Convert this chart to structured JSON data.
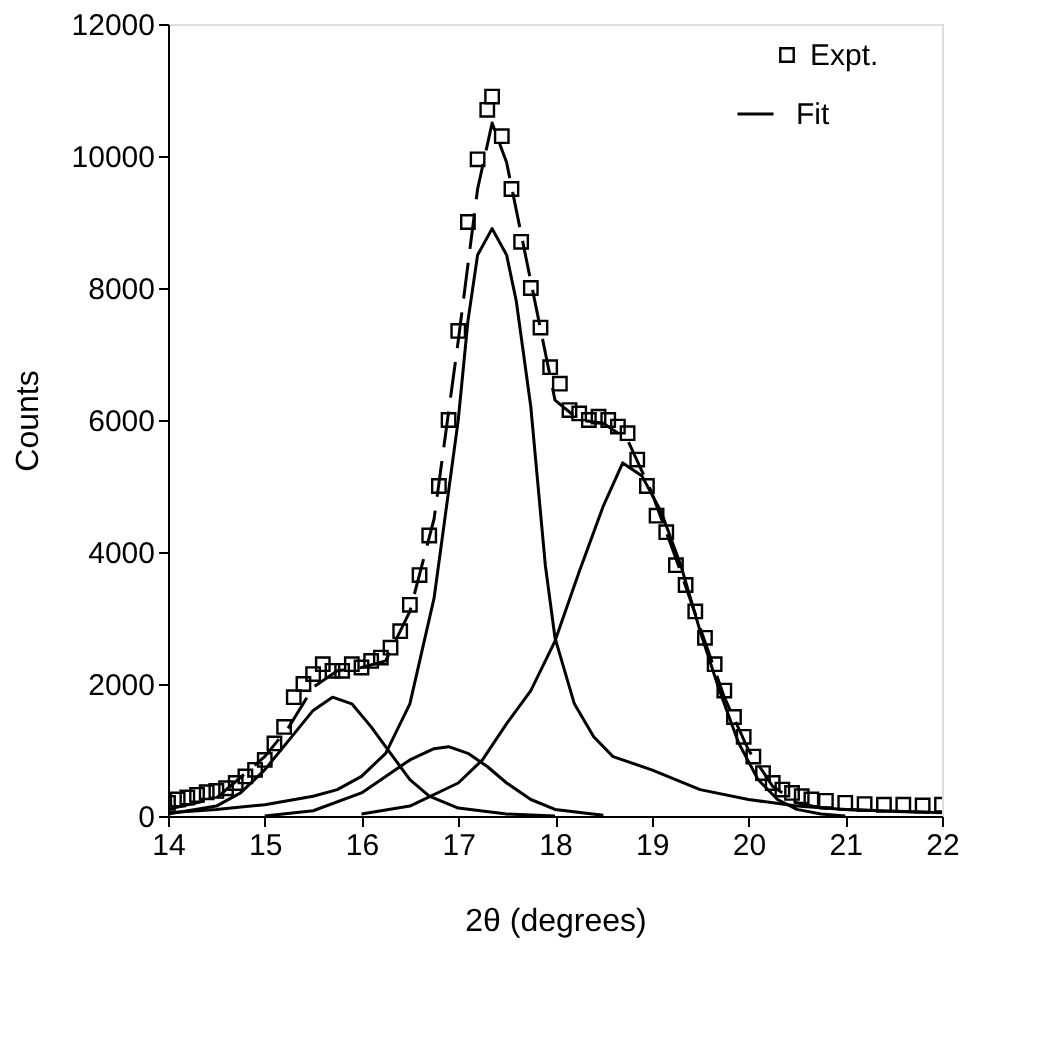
{
  "chart_data": {
    "type": "line",
    "xlabel": "2θ (degrees)",
    "ylabel": "Counts",
    "xlim": [
      14,
      22
    ],
    "xticks": [
      14,
      15,
      16,
      17,
      18,
      19,
      20,
      21,
      22
    ],
    "ylim": [
      0,
      12000
    ],
    "yticks": [
      0,
      2000,
      4000,
      6000,
      8000,
      10000,
      12000
    ],
    "grid": false,
    "legend": "top right",
    "series": [
      {
        "name": "Expt.",
        "type": "scatter",
        "marker": "square",
        "color": "#000000",
        "x": [
          14.0,
          14.1,
          14.2,
          14.3,
          14.4,
          14.5,
          14.6,
          14.7,
          14.8,
          14.9,
          15.0,
          15.1,
          15.2,
          15.3,
          15.4,
          15.5,
          15.6,
          15.7,
          15.8,
          15.9,
          16.0,
          16.1,
          16.2,
          16.3,
          16.4,
          16.5,
          16.6,
          16.7,
          16.8,
          16.9,
          17.0,
          17.1,
          17.2,
          17.3,
          17.35,
          17.45,
          17.55,
          17.65,
          17.75,
          17.85,
          17.95,
          18.05,
          18.15,
          18.25,
          18.35,
          18.45,
          18.55,
          18.65,
          18.75,
          18.85,
          18.95,
          19.05,
          19.15,
          19.25,
          19.35,
          19.45,
          19.55,
          19.65,
          19.75,
          19.85,
          19.95,
          20.05,
          20.15,
          20.25,
          20.35,
          20.45,
          20.55,
          20.65,
          20.8,
          21.0,
          21.2,
          21.4,
          21.6,
          21.8,
          22.0
        ],
        "values": [
          200,
          250,
          280,
          320,
          360,
          380,
          420,
          500,
          600,
          700,
          850,
          1100,
          1350,
          1800,
          2000,
          2150,
          2300,
          2200,
          2200,
          2300,
          2250,
          2350,
          2400,
          2550,
          2800,
          3200,
          3650,
          4250,
          5000,
          6000,
          7350,
          9000,
          9950,
          10700,
          10900,
          10300,
          9500,
          8700,
          8000,
          7400,
          6800,
          6550,
          6150,
          6100,
          6000,
          6050,
          6000,
          5900,
          5800,
          5400,
          5000,
          4550,
          4300,
          3800,
          3500,
          3100,
          2700,
          2300,
          1900,
          1500,
          1200,
          900,
          650,
          500,
          400,
          350,
          300,
          250,
          230,
          200,
          180,
          170,
          170,
          160,
          170
        ]
      },
      {
        "name": "Fit",
        "line_style": "dashed",
        "color": "#000000",
        "x": [
          14.0,
          14.5,
          15.0,
          15.25,
          15.5,
          15.75,
          16.0,
          16.25,
          16.5,
          16.75,
          17.0,
          17.2,
          17.35,
          17.5,
          17.75,
          18.0,
          18.25,
          18.5,
          18.75,
          19.0,
          19.25,
          19.5,
          19.75,
          20.0,
          20.25,
          20.5,
          20.75,
          21.0,
          21.5,
          22.0
        ],
        "values": [
          100,
          270,
          900,
          1350,
          1950,
          2200,
          2250,
          2350,
          3100,
          4500,
          7200,
          9500,
          10500,
          9900,
          8100,
          6300,
          6000,
          5950,
          5700,
          4900,
          3900,
          2850,
          1800,
          1000,
          450,
          200,
          120,
          100,
          70,
          50
        ]
      },
      {
        "type": "line",
        "line_style": "solid",
        "color": "#000000",
        "x": [
          14.0,
          14.5,
          14.75,
          15.0,
          15.25,
          15.5,
          15.7,
          15.9,
          16.1,
          16.3,
          16.5,
          16.7,
          17.0,
          17.5,
          18.0
        ],
        "values": [
          30,
          150,
          350,
          700,
          1150,
          1600,
          1800,
          1700,
          1350,
          950,
          550,
          300,
          120,
          30,
          0
        ]
      },
      {
        "type": "line",
        "line_style": "solid",
        "color": "#000000",
        "x": [
          15.0,
          15.5,
          16.0,
          16.25,
          16.5,
          16.75,
          16.9,
          17.1,
          17.3,
          17.5,
          17.75,
          18.0,
          18.5
        ],
        "values": [
          0,
          80,
          350,
          600,
          850,
          1020,
          1050,
          950,
          750,
          500,
          250,
          100,
          10
        ]
      },
      {
        "type": "line",
        "line_style": "solid",
        "color": "#000000",
        "x": [
          14.0,
          14.5,
          15.0,
          15.5,
          15.75,
          16.0,
          16.25,
          16.5,
          16.75,
          17.0,
          17.1,
          17.2,
          17.35,
          17.5,
          17.6,
          17.75,
          17.9,
          18.0,
          18.2,
          18.4,
          18.6,
          19.0,
          19.5,
          20.0,
          20.5,
          21.0,
          22.0
        ],
        "values": [
          50,
          100,
          170,
          300,
          400,
          600,
          950,
          1700,
          3300,
          6000,
          7500,
          8500,
          8900,
          8500,
          7800,
          6200,
          3800,
          2700,
          1700,
          1200,
          900,
          700,
          400,
          250,
          150,
          100,
          50
        ]
      },
      {
        "type": "line",
        "line_style": "solid",
        "color": "#000000",
        "x": [
          16.0,
          16.5,
          17.0,
          17.25,
          17.5,
          17.75,
          18.0,
          18.25,
          18.5,
          18.7,
          18.9,
          19.1,
          19.3,
          19.5,
          19.7,
          19.9,
          20.1,
          20.3,
          20.5,
          20.75,
          21.0
        ],
        "values": [
          30,
          150,
          500,
          850,
          1400,
          1900,
          2650,
          3700,
          4700,
          5350,
          5150,
          4600,
          3800,
          2800,
          1900,
          1100,
          550,
          250,
          100,
          30,
          0
        ]
      }
    ]
  }
}
